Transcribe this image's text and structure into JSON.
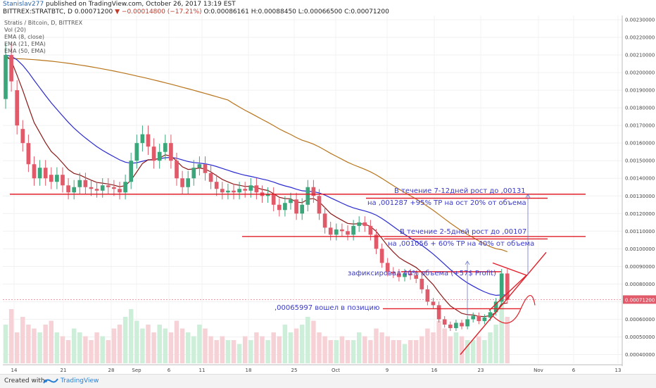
{
  "header": {
    "author": "Stanislav277",
    "published_text": "published on TradingView.com, October 26, 2017 13:19 EST",
    "symbol_line": "BITTREX:STRATBTC, D",
    "last": "0.00071200",
    "change": "−0.00014800 (−17.21%)",
    "o": "O:0.00086161",
    "h": "H:0.00088450",
    "l": "L:0.00066500",
    "c": "C:0.00071200"
  },
  "legend": [
    "Stratis / Bitcoin, D, BITTREX",
    "Vol (20)",
    "EMA (8, close)",
    "EMA (21, EMA)",
    "EMA (50, EMA)"
  ],
  "footer": {
    "created_with": "Created with",
    "brand": "TradingView"
  },
  "price_label": "0.00071200",
  "annotations": [
    "В течение 7-12дней рост до ,00131",
    "на ,001287  +95% ТР на ост 20% от объема",
    "В течение 2-5дней рост до ,00107",
    "на ,001056 + 60% ТР на 40% от объема",
    "зафиксировал 40% объема (+57$ Profit)",
    ",00065997 вошел в позицию"
  ],
  "chart_data": {
    "type": "candlestick",
    "ylim": [
      0.00035,
      0.0023
    ],
    "yticks": [
      "0.00040000",
      "0.00050000",
      "0.00060000",
      "0.00070000",
      "0.00080000",
      "0.00090000",
      "0.00100000",
      "0.00110000",
      "0.00120000",
      "0.00130000",
      "0.00140000",
      "0.00150000",
      "0.00160000",
      "0.00170000",
      "0.00180000",
      "0.00190000",
      "0.00200000",
      "0.00210000",
      "0.00220000",
      "0.00230000"
    ],
    "xticks": [
      "14",
      "21",
      "28",
      "Sep",
      "6",
      "11",
      "18",
      "25",
      "Oct",
      "9",
      "16",
      "23",
      "Nov",
      "6",
      "13"
    ],
    "closes": [
      0.0021,
      0.00195,
      0.0017,
      0.0016,
      0.00148,
      0.0014,
      0.00146,
      0.0014,
      0.00138,
      0.00142,
      0.00136,
      0.00132,
      0.00135,
      0.00139,
      0.00135,
      0.00134,
      0.00133,
      0.00136,
      0.00135,
      0.00134,
      0.00132,
      0.00138,
      0.0015,
      0.0016,
      0.00165,
      0.00158,
      0.0015,
      0.00155,
      0.0016,
      0.0015,
      0.0014,
      0.00135,
      0.0014,
      0.00146,
      0.00148,
      0.00143,
      0.00138,
      0.00134,
      0.00132,
      0.00133,
      0.00132,
      0.00134,
      0.00133,
      0.00136,
      0.00132,
      0.0013,
      0.00131,
      0.00125,
      0.00122,
      0.00126,
      0.00128,
      0.0012,
      0.00125,
      0.00135,
      0.0013,
      0.0012,
      0.00112,
      0.00108,
      0.00111,
      0.0011,
      0.00108,
      0.00113,
      0.00115,
      0.00113,
      0.00108,
      0.001,
      0.00092,
      0.00087,
      0.00086,
      0.00084,
      0.00086,
      0.00085,
      0.00083,
      0.00077,
      0.0007,
      0.00068,
      0.0006,
      0.00057,
      0.00055,
      0.00058,
      0.00056,
      0.0006,
      0.00062,
      0.00059,
      0.00061,
      0.00064,
      0.0007,
      0.00086,
      0.00071
    ],
    "opens": [
      0.00185,
      0.0021,
      0.0019,
      0.00168,
      0.0016,
      0.00148,
      0.0014,
      0.00146,
      0.00142,
      0.00138,
      0.00142,
      0.00136,
      0.00132,
      0.00135,
      0.00139,
      0.00135,
      0.00134,
      0.00133,
      0.00136,
      0.00135,
      0.00134,
      0.00132,
      0.00138,
      0.0015,
      0.0016,
      0.00165,
      0.00158,
      0.0015,
      0.00155,
      0.0016,
      0.0015,
      0.0014,
      0.00135,
      0.0014,
      0.00146,
      0.00148,
      0.00143,
      0.00138,
      0.00134,
      0.00132,
      0.00133,
      0.00132,
      0.00134,
      0.00133,
      0.00136,
      0.00132,
      0.0013,
      0.00131,
      0.00125,
      0.00122,
      0.00126,
      0.00128,
      0.0012,
      0.00125,
      0.00135,
      0.0013,
      0.0012,
      0.00112,
      0.00108,
      0.00111,
      0.0011,
      0.00108,
      0.00113,
      0.00115,
      0.00113,
      0.00108,
      0.001,
      0.00092,
      0.00087,
      0.00086,
      0.00084,
      0.00086,
      0.00085,
      0.00083,
      0.00077,
      0.0007,
      0.00068,
      0.0006,
      0.00057,
      0.00055,
      0.00058,
      0.00056,
      0.0006,
      0.00062,
      0.00059,
      0.00061,
      0.00064,
      0.0007,
      0.00086
    ],
    "volumes": [
      0.5,
      0.7,
      0.4,
      0.6,
      0.5,
      0.45,
      0.4,
      0.5,
      0.55,
      0.4,
      0.35,
      0.3,
      0.45,
      0.4,
      0.35,
      0.3,
      0.4,
      0.35,
      0.3,
      0.45,
      0.5,
      0.6,
      0.7,
      0.55,
      0.45,
      0.5,
      0.4,
      0.5,
      0.45,
      0.4,
      0.55,
      0.45,
      0.4,
      0.35,
      0.5,
      0.45,
      0.35,
      0.3,
      0.35,
      0.3,
      0.3,
      0.25,
      0.35,
      0.3,
      0.4,
      0.35,
      0.3,
      0.4,
      0.35,
      0.5,
      0.4,
      0.45,
      0.5,
      0.6,
      0.55,
      0.4,
      0.35,
      0.3,
      0.3,
      0.35,
      0.3,
      0.3,
      0.4,
      0.35,
      0.3,
      0.45,
      0.4,
      0.35,
      0.3,
      0.3,
      0.25,
      0.3,
      0.3,
      0.35,
      0.45,
      0.4,
      0.55,
      0.45,
      0.35,
      0.4,
      0.35,
      0.3,
      0.3,
      0.35,
      0.3,
      0.4,
      0.5,
      0.85,
      0.6
    ],
    "lines": {
      "resistance_1": 0.00131,
      "resistance_1b": 0.001287,
      "resistance_2": 0.00107,
      "resistance_2b": 0.001056,
      "fix_level": 0.00087,
      "entry_level": 0.00066
    },
    "colors": {
      "up": "#3aa67a",
      "down": "#e05a6a",
      "ema8": "#8b1a1a",
      "ema21": "#2a2ad0",
      "ema50": "#b8741a",
      "hline": "#e0202a",
      "annot": "#3a3ac8",
      "price_label": "#e05a6a"
    }
  }
}
